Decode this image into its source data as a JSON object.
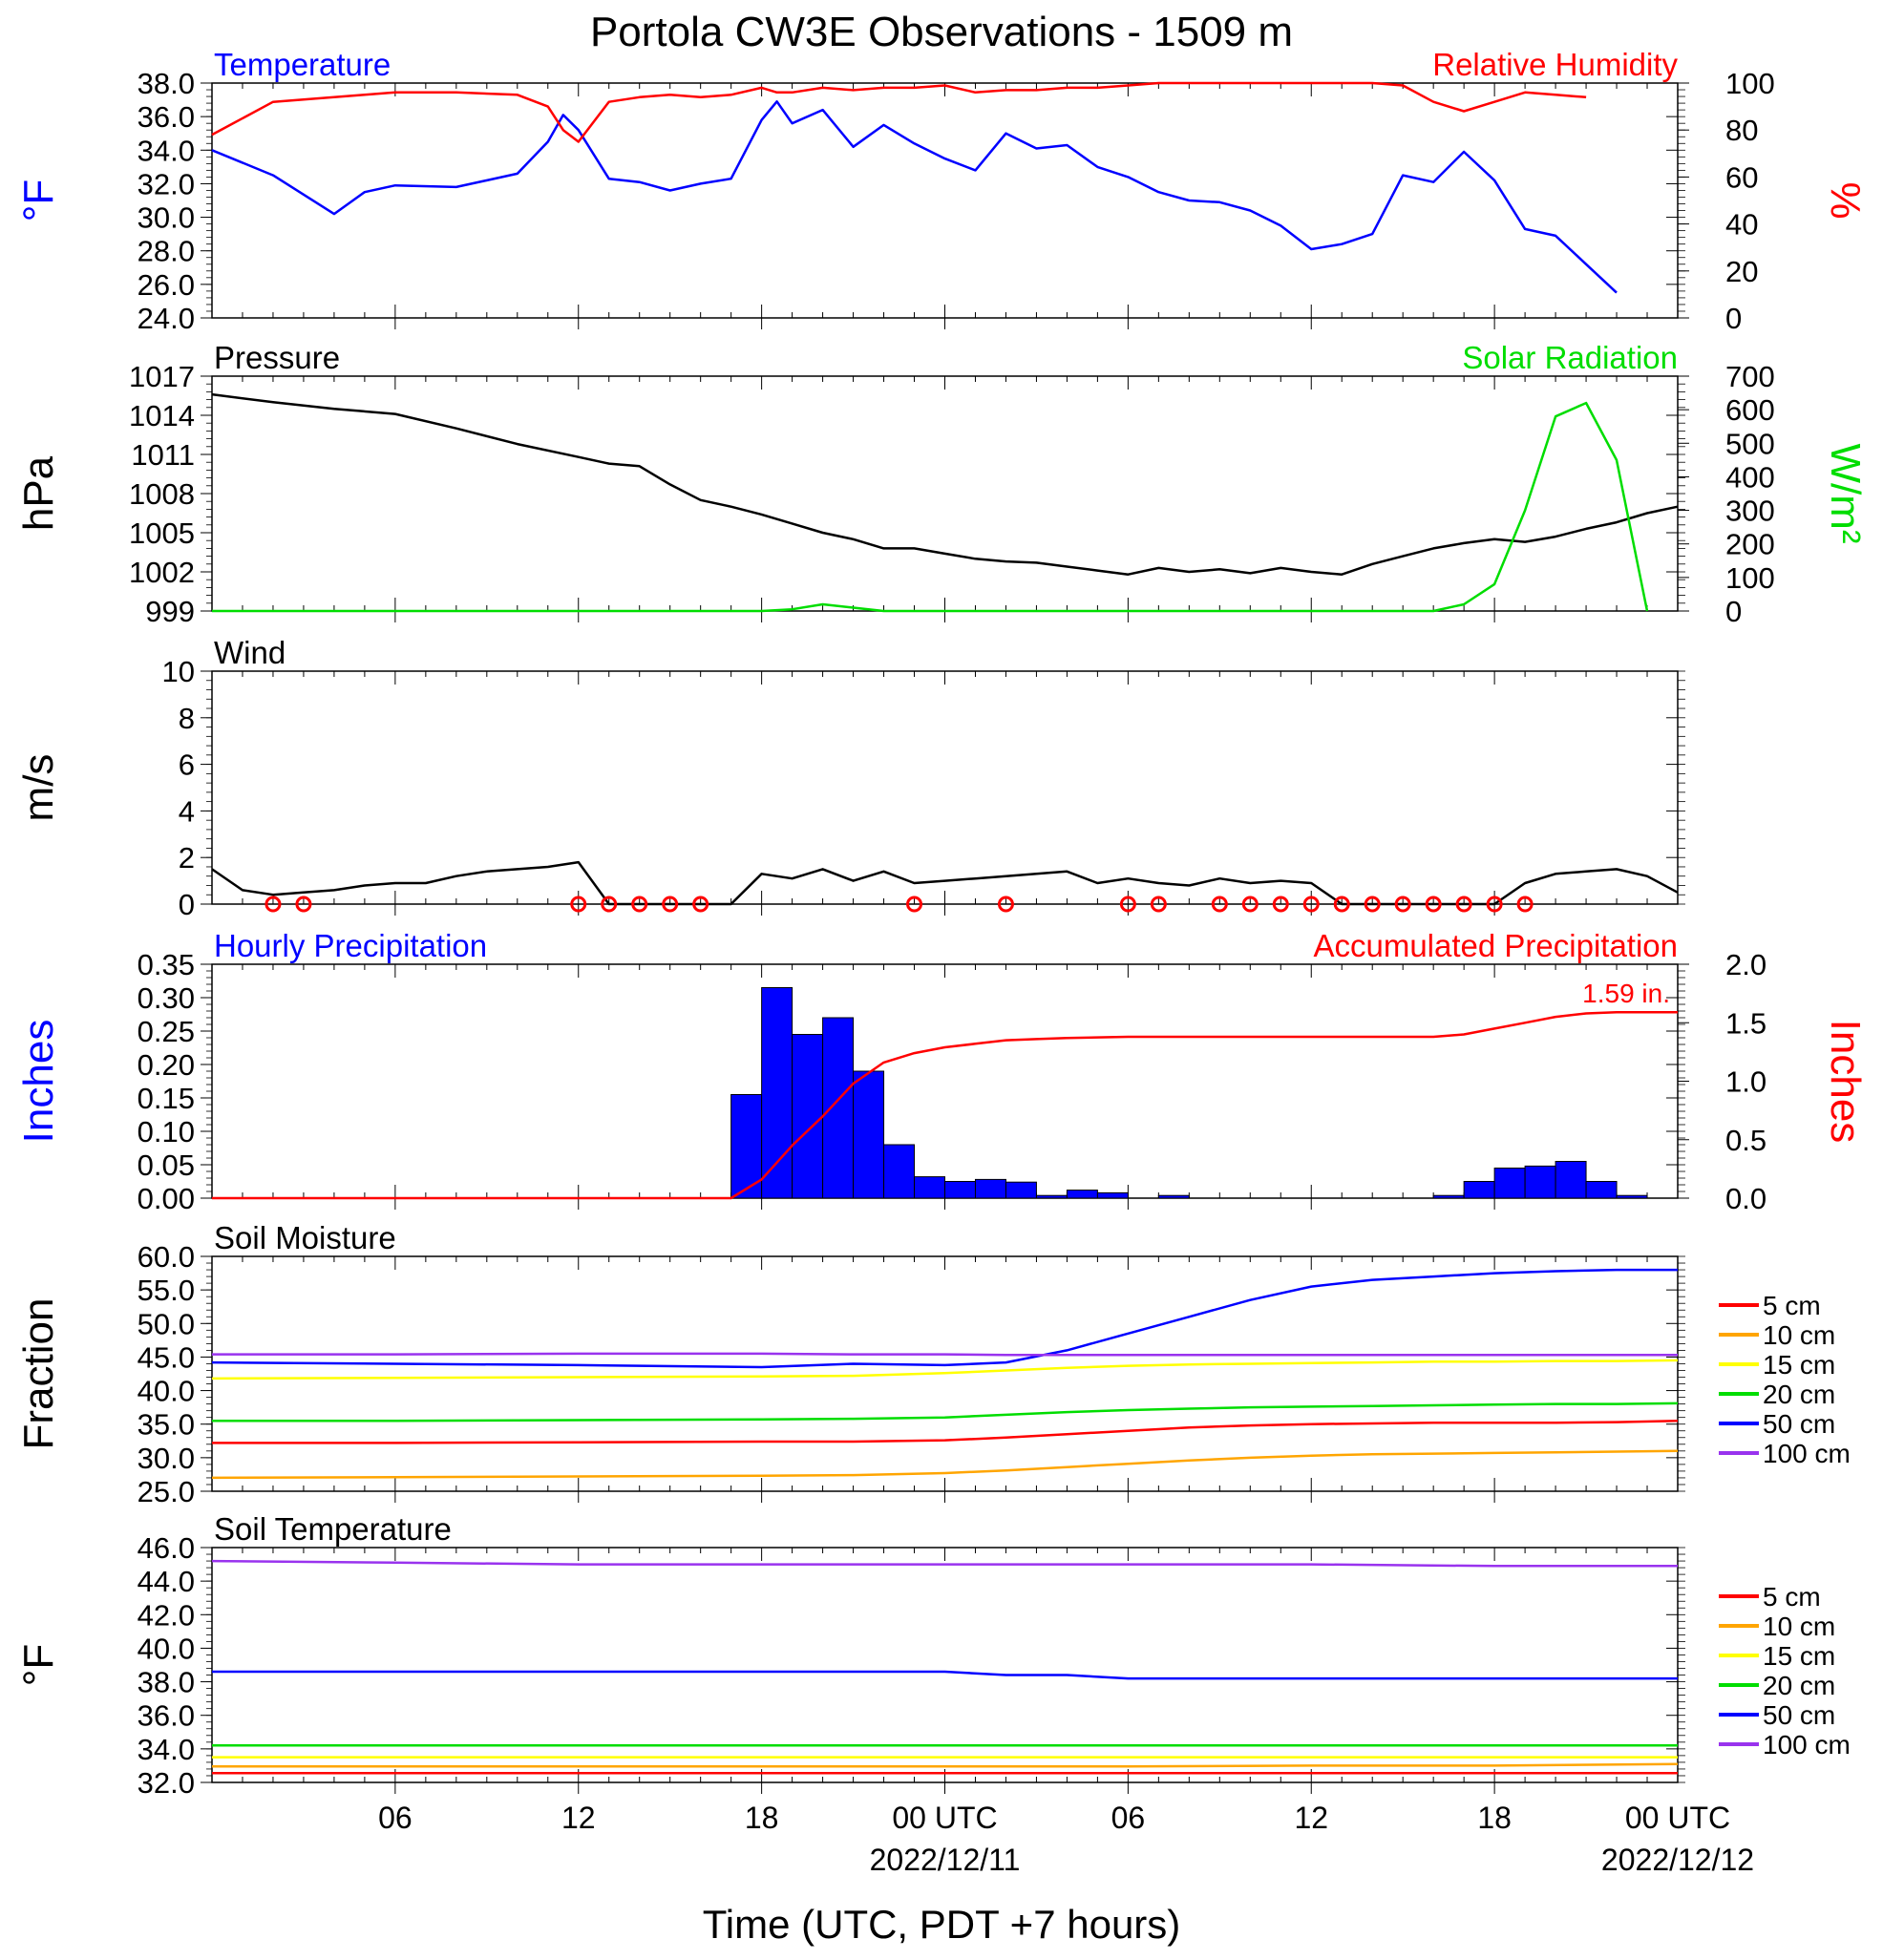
{
  "title": "Portola CW3E Observations - 1509 m",
  "x_axis": {
    "ticks": [
      "06",
      "12",
      "18",
      "00 UTC",
      "06",
      "12",
      "18",
      "00 UTC"
    ],
    "dates": [
      "2022/12/11",
      "2022/12/12"
    ],
    "label": "Time (UTC, PDT +7 hours)"
  },
  "colors": {
    "temperature": "#0000ff",
    "humidity": "#ff0000",
    "pressure": "#000000",
    "solar": "#00dd00",
    "wind": "#000000",
    "barbs": "#ff0000",
    "hourly_precip": "#0000ff",
    "accum_precip": "#ff0000",
    "soil_5": "#ff0000",
    "soil_10": "#ffa500",
    "soil_15": "#ffff00",
    "soil_20": "#00dd00",
    "soil_50": "#0000ff",
    "soil_100": "#9933ee"
  },
  "chart_data": [
    {
      "type": "line",
      "title": "Temperature",
      "right_title": "Relative Humidity",
      "ylabel": "°F",
      "ylabel_right": "%",
      "ylim": [
        24,
        38
      ],
      "ylim_right": [
        0,
        100
      ],
      "yticks": [
        "38.0",
        "36.0",
        "34.0",
        "32.0",
        "30.0",
        "28.0",
        "26.0",
        "24.0"
      ],
      "yticks_right": [
        "100",
        "80",
        "60",
        "40",
        "20",
        "0"
      ],
      "x_hours": [
        0,
        2,
        4,
        5,
        6,
        8,
        10,
        11,
        11.5,
        12,
        13,
        14,
        15,
        16,
        17,
        18,
        18.5,
        19,
        20,
        21,
        22,
        23,
        24,
        25,
        26,
        27,
        28,
        29,
        30,
        31,
        32,
        33,
        34,
        35,
        36,
        37,
        38,
        39,
        40,
        41,
        42,
        43,
        44,
        45,
        46,
        47,
        48
      ],
      "series": [
        {
          "name": "Temperature",
          "values": [
            34,
            32.5,
            30.2,
            31.5,
            31.9,
            31.8,
            32.6,
            34.5,
            36.1,
            35.2,
            32.3,
            32.1,
            31.6,
            32.0,
            32.3,
            35.8,
            36.9,
            35.6,
            36.4,
            34.2,
            35.5,
            34.4,
            33.5,
            32.8,
            35.0,
            34.1,
            34.3,
            33.0,
            32.4,
            31.5,
            31.0,
            30.9,
            30.4,
            29.5,
            28.1,
            28.4,
            29.0,
            32.5,
            32.1,
            33.9,
            32.2,
            29.3,
            28.9,
            27.2,
            25.5,
            null,
            null
          ]
        },
        {
          "name": "Relative Humidity",
          "values": [
            78,
            92,
            94,
            95,
            96,
            96,
            95,
            90,
            80,
            75,
            92,
            94,
            95,
            94,
            95,
            98,
            96,
            96,
            98,
            97,
            98,
            98,
            99,
            96,
            97,
            97,
            98,
            98,
            99,
            100,
            100,
            100,
            100,
            100,
            100,
            100,
            100,
            99,
            92,
            88,
            92,
            96,
            95,
            94,
            null,
            null,
            null
          ]
        }
      ]
    },
    {
      "type": "line",
      "title": "Pressure",
      "right_title": "Solar Radiation",
      "ylabel": "hPa",
      "ylabel_right": "W/m²",
      "ylim": [
        999,
        1017
      ],
      "ylim_right": [
        0,
        700
      ],
      "yticks": [
        "1017",
        "1014",
        "1011",
        "1008",
        "1005",
        "1002",
        "999"
      ],
      "yticks_right": [
        "700",
        "600",
        "500",
        "400",
        "300",
        "200",
        "100",
        "0"
      ],
      "x_hours": [
        0,
        2,
        4,
        6,
        8,
        10,
        12,
        13,
        14,
        15,
        16,
        17,
        18,
        19,
        20,
        21,
        22,
        23,
        24,
        25,
        26,
        27,
        28,
        29,
        30,
        31,
        32,
        33,
        34,
        35,
        36,
        37,
        38,
        39,
        40,
        41,
        42,
        43,
        44,
        45,
        46,
        47,
        48
      ],
      "series": [
        {
          "name": "Pressure",
          "values": [
            1015.6,
            1015,
            1014.5,
            1014.1,
            1013,
            1011.8,
            1010.8,
            1010.3,
            1010.1,
            1008.7,
            1007.5,
            1007,
            1006.4,
            1005.7,
            1005,
            1004.5,
            1003.8,
            1003.8,
            1003.4,
            1003,
            1002.8,
            1002.7,
            1002.4,
            1002.1,
            1001.8,
            1002.3,
            1002.0,
            1002.2,
            1001.9,
            1002.3,
            1002.0,
            1001.8,
            1002.6,
            1003.2,
            1003.8,
            1004.2,
            1004.5,
            1004.3,
            1004.7,
            1005.3,
            1005.8,
            1006.5,
            1007.0
          ]
        },
        {
          "name": "Solar Radiation",
          "values": [
            0,
            0,
            0,
            0,
            0,
            0,
            0,
            0,
            0,
            0,
            0,
            0,
            0,
            5,
            20,
            10,
            0,
            0,
            0,
            0,
            0,
            0,
            0,
            0,
            0,
            0,
            0,
            0,
            0,
            0,
            0,
            0,
            0,
            0,
            0,
            20,
            80,
            300,
            580,
            620,
            450,
            0,
            null
          ]
        }
      ]
    },
    {
      "type": "line",
      "title": "Wind",
      "ylabel": "m/s",
      "ylim": [
        0,
        10
      ],
      "yticks": [
        "10",
        "8",
        "6",
        "4",
        "2",
        "0"
      ],
      "x_hours": [
        0,
        1,
        2,
        3,
        4,
        5,
        6,
        7,
        8,
        9,
        10,
        11,
        12,
        13,
        14,
        15,
        16,
        17,
        18,
        19,
        20,
        21,
        22,
        23,
        24,
        25,
        26,
        27,
        28,
        29,
        30,
        31,
        32,
        33,
        34,
        35,
        36,
        37,
        38,
        39,
        40,
        41,
        42,
        43,
        44,
        45,
        46,
        47,
        48
      ],
      "series": [
        {
          "name": "Wind speed",
          "values": [
            1.5,
            0.6,
            0.4,
            0.5,
            0.6,
            0.8,
            0.9,
            0.9,
            1.2,
            1.4,
            1.5,
            1.6,
            1.8,
            0,
            0,
            0,
            0,
            0,
            1.3,
            1.1,
            1.5,
            1.0,
            1.4,
            0.9,
            1.0,
            1.1,
            1.2,
            1.3,
            1.4,
            0.9,
            1.1,
            0.9,
            0.8,
            1.1,
            0.9,
            1.0,
            0.9,
            0,
            0,
            0,
            0,
            0,
            0,
            0.9,
            1.3,
            1.4,
            1.5,
            1.2,
            0.5
          ]
        }
      ],
      "calm_hours": [
        2,
        3,
        12,
        13,
        14,
        15,
        16,
        23,
        26,
        30,
        31,
        33,
        34,
        35,
        36,
        37,
        38,
        39,
        40,
        41,
        42,
        43
      ]
    },
    {
      "type": "bar",
      "title": "Hourly Precipitation",
      "right_title": "Accumulated Precipitation",
      "annotation": "1.59 in.",
      "ylabel": "Inches",
      "ylabel_right": "Inches",
      "ylim": [
        0,
        0.35
      ],
      "ylim_right": [
        0,
        2.0
      ],
      "yticks": [
        "0.35",
        "0.30",
        "0.25",
        "0.20",
        "0.15",
        "0.10",
        "0.05",
        "0.00"
      ],
      "yticks_right": [
        "2.0",
        "1.5",
        "1.0",
        "0.5",
        "0.0"
      ],
      "bar_start_hours": [
        17,
        18,
        19,
        20,
        21,
        22,
        23,
        24,
        25,
        26,
        27,
        28,
        29,
        30,
        31,
        32,
        33,
        34,
        35,
        36,
        37,
        38,
        39,
        40,
        41,
        42,
        43,
        44,
        45,
        46,
        47
      ],
      "series": [
        {
          "name": "Hourly Precipitation",
          "values": [
            0.155,
            0.315,
            0.245,
            0.27,
            0.19,
            0.08,
            0.032,
            0.025,
            0.028,
            0.024,
            0.004,
            0.012,
            0.008,
            0,
            0.004,
            0,
            0,
            0,
            0,
            0,
            0,
            0,
            0,
            0.004,
            0.025,
            0.045,
            0.048,
            0.055,
            0.025,
            0.004,
            0
          ]
        },
        {
          "name": "Accumulated Precipitation",
          "x_hours": [
            0,
            17,
            18,
            19,
            20,
            21,
            22,
            23,
            24,
            25,
            26,
            27,
            28,
            30,
            32,
            36,
            40,
            41,
            42,
            43,
            44,
            45,
            46,
            47,
            48
          ],
          "values": [
            0,
            0,
            0.16,
            0.45,
            0.7,
            0.98,
            1.16,
            1.24,
            1.29,
            1.32,
            1.35,
            1.36,
            1.37,
            1.38,
            1.38,
            1.38,
            1.38,
            1.4,
            1.45,
            1.5,
            1.55,
            1.58,
            1.59,
            1.59,
            1.59
          ]
        }
      ]
    },
    {
      "type": "line",
      "title": "Soil Moisture",
      "ylabel": "Fraction",
      "ylim": [
        25,
        60
      ],
      "yticks": [
        "60.0",
        "55.0",
        "50.0",
        "45.0",
        "40.0",
        "35.0",
        "30.0",
        "25.0"
      ],
      "legend": [
        "5 cm",
        "10 cm",
        "15 cm",
        "20 cm",
        "50 cm",
        "100 cm"
      ],
      "x_hours": [
        0,
        6,
        12,
        18,
        21,
        24,
        26,
        28,
        30,
        32,
        34,
        36,
        38,
        40,
        42,
        44,
        46,
        48
      ],
      "series": [
        {
          "name": "5 cm",
          "values": [
            32.2,
            32.2,
            32.3,
            32.4,
            32.4,
            32.6,
            33.0,
            33.5,
            34.0,
            34.5,
            34.8,
            35.0,
            35.1,
            35.2,
            35.2,
            35.2,
            35.3,
            35.5
          ]
        },
        {
          "name": "10 cm",
          "values": [
            27.0,
            27.1,
            27.2,
            27.3,
            27.4,
            27.7,
            28.1,
            28.6,
            29.1,
            29.6,
            30.0,
            30.3,
            30.5,
            30.6,
            30.7,
            30.8,
            30.9,
            31.0
          ]
        },
        {
          "name": "15 cm",
          "values": [
            41.8,
            41.9,
            42.0,
            42.1,
            42.2,
            42.6,
            43.0,
            43.4,
            43.7,
            43.9,
            44.0,
            44.1,
            44.2,
            44.3,
            44.3,
            44.4,
            44.4,
            44.5
          ]
        },
        {
          "name": "20 cm",
          "values": [
            35.5,
            35.5,
            35.6,
            35.7,
            35.8,
            36.0,
            36.4,
            36.8,
            37.1,
            37.3,
            37.5,
            37.6,
            37.7,
            37.8,
            37.9,
            38.0,
            38.0,
            38.1
          ]
        },
        {
          "name": "50 cm",
          "values": [
            44.2,
            44.0,
            43.8,
            43.5,
            44.0,
            43.8,
            44.2,
            46.0,
            48.5,
            51.0,
            53.5,
            55.5,
            56.5,
            57.0,
            57.5,
            57.8,
            58.0,
            58.0
          ]
        },
        {
          "name": "100 cm",
          "values": [
            45.4,
            45.4,
            45.5,
            45.5,
            45.4,
            45.4,
            45.3,
            45.3,
            45.3,
            45.3,
            45.3,
            45.3,
            45.3,
            45.3,
            45.3,
            45.3,
            45.3,
            45.3
          ]
        }
      ]
    },
    {
      "type": "line",
      "title": "Soil Temperature",
      "ylabel": "°F",
      "ylim": [
        32,
        46
      ],
      "yticks": [
        "46.0",
        "44.0",
        "42.0",
        "40.0",
        "38.0",
        "36.0",
        "34.0",
        "32.0"
      ],
      "legend": [
        "5 cm",
        "10 cm",
        "15 cm",
        "20 cm",
        "50 cm",
        "100 cm"
      ],
      "x_hours": [
        0,
        6,
        12,
        18,
        24,
        26,
        28,
        30,
        36,
        42,
        48
      ],
      "series": [
        {
          "name": "5 cm",
          "values": [
            32.55,
            32.55,
            32.55,
            32.55,
            32.55,
            32.55,
            32.55,
            32.55,
            32.55,
            32.55,
            32.55
          ]
        },
        {
          "name": "10 cm",
          "values": [
            32.95,
            32.95,
            32.95,
            32.95,
            32.95,
            32.95,
            32.95,
            32.95,
            33.0,
            33.0,
            33.1
          ]
        },
        {
          "name": "15 cm",
          "values": [
            33.5,
            33.5,
            33.5,
            33.5,
            33.5,
            33.5,
            33.5,
            33.5,
            33.5,
            33.5,
            33.5
          ]
        },
        {
          "name": "20 cm",
          "values": [
            34.2,
            34.2,
            34.2,
            34.2,
            34.2,
            34.2,
            34.2,
            34.2,
            34.2,
            34.2,
            34.2
          ]
        },
        {
          "name": "50 cm",
          "values": [
            38.6,
            38.6,
            38.6,
            38.6,
            38.6,
            38.4,
            38.4,
            38.2,
            38.2,
            38.2,
            38.2
          ]
        },
        {
          "name": "100 cm",
          "values": [
            45.2,
            45.1,
            45.0,
            45.0,
            45.0,
            45.0,
            45.0,
            45.0,
            45.0,
            44.9,
            44.9
          ]
        }
      ]
    }
  ]
}
